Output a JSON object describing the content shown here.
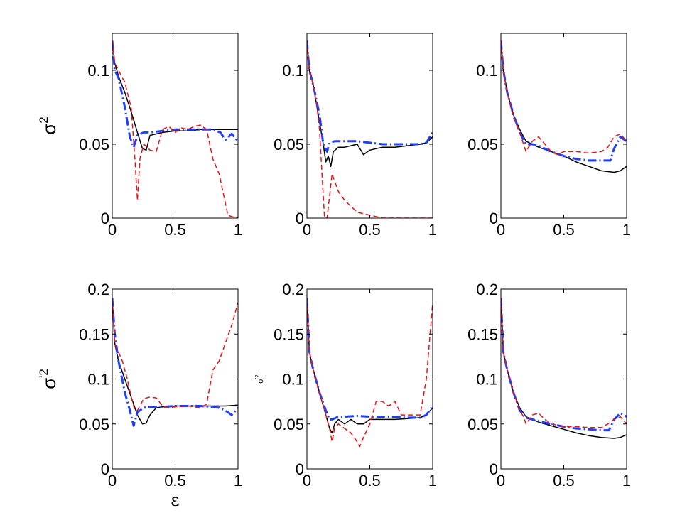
{
  "chart_data": [
    {
      "type": "line",
      "panel": "top-left",
      "xlim": [
        0,
        1
      ],
      "ylim": [
        0,
        0.125
      ],
      "xticks": [
        "0",
        "0.5",
        "1"
      ],
      "yticks": [
        "0",
        "0.05",
        "0.1"
      ],
      "ylabel": "σ",
      "ylabel_sup": "2",
      "xlabel": "",
      "series": [
        {
          "name": "solid",
          "x": [
            0,
            0.02,
            0.05,
            0.1,
            0.15,
            0.2,
            0.24,
            0.27,
            0.3,
            0.4,
            0.5,
            0.6,
            0.7,
            0.8,
            0.9,
            1.0
          ],
          "y": [
            0.12,
            0.105,
            0.096,
            0.085,
            0.072,
            0.058,
            0.047,
            0.046,
            0.056,
            0.058,
            0.059,
            0.059,
            0.06,
            0.06,
            0.06,
            0.06
          ]
        },
        {
          "name": "dashdot",
          "x": [
            0,
            0.02,
            0.05,
            0.1,
            0.14,
            0.17,
            0.2,
            0.25,
            0.3,
            0.4,
            0.5,
            0.6,
            0.7,
            0.8,
            0.86,
            0.9,
            0.95,
            1.0
          ],
          "y": [
            0.12,
            0.1,
            0.095,
            0.075,
            0.055,
            0.048,
            0.056,
            0.058,
            0.058,
            0.059,
            0.06,
            0.06,
            0.06,
            0.06,
            0.058,
            0.053,
            0.057,
            0.052
          ]
        },
        {
          "name": "dashed",
          "x": [
            0,
            0.02,
            0.05,
            0.08,
            0.1,
            0.12,
            0.15,
            0.18,
            0.2,
            0.22,
            0.25,
            0.28,
            0.3,
            0.35,
            0.4,
            0.45,
            0.5,
            0.55,
            0.6,
            0.65,
            0.7,
            0.75,
            0.8,
            0.85,
            0.9,
            0.92,
            0.95,
            1.0
          ],
          "y": [
            0.12,
            0.105,
            0.1,
            0.095,
            0.092,
            0.085,
            0.075,
            0.04,
            0.012,
            0.04,
            0.05,
            0.048,
            0.046,
            0.045,
            0.06,
            0.062,
            0.058,
            0.061,
            0.06,
            0.062,
            0.063,
            0.06,
            0.04,
            0.03,
            0.01,
            0.002,
            0.001,
            0.0
          ]
        }
      ]
    },
    {
      "type": "line",
      "panel": "top-middle",
      "xlim": [
        0,
        1
      ],
      "ylim": [
        0,
        0.125
      ],
      "xticks": [
        "0",
        "0.5",
        "1"
      ],
      "yticks": [
        "0",
        "0.05",
        "0.1"
      ],
      "ylabel": "",
      "xlabel": "",
      "series": [
        {
          "name": "solid",
          "x": [
            0,
            0.02,
            0.05,
            0.1,
            0.13,
            0.15,
            0.17,
            0.19,
            0.21,
            0.25,
            0.3,
            0.35,
            0.4,
            0.45,
            0.5,
            0.6,
            0.7,
            0.8,
            0.9,
            0.95,
            1.0
          ],
          "y": [
            0.12,
            0.1,
            0.09,
            0.065,
            0.05,
            0.038,
            0.042,
            0.035,
            0.045,
            0.048,
            0.048,
            0.049,
            0.05,
            0.043,
            0.046,
            0.048,
            0.048,
            0.049,
            0.05,
            0.051,
            0.055
          ]
        },
        {
          "name": "dashdot",
          "x": [
            0,
            0.02,
            0.05,
            0.1,
            0.13,
            0.16,
            0.18,
            0.22,
            0.3,
            0.4,
            0.5,
            0.6,
            0.7,
            0.8,
            0.9,
            0.95,
            1.0
          ],
          "y": [
            0.12,
            0.1,
            0.09,
            0.07,
            0.05,
            0.045,
            0.051,
            0.052,
            0.052,
            0.052,
            0.051,
            0.05,
            0.05,
            0.05,
            0.05,
            0.051,
            0.058
          ]
        },
        {
          "name": "dashed",
          "x": [
            0,
            0.02,
            0.05,
            0.08,
            0.1,
            0.12,
            0.14,
            0.16,
            0.18,
            0.2,
            0.22,
            0.25,
            0.3,
            0.35,
            0.4,
            0.45,
            0.5,
            0.6,
            0.7,
            0.8,
            0.9,
            1.0
          ],
          "y": [
            0.12,
            0.1,
            0.09,
            0.075,
            0.06,
            0.03,
            0.0,
            0.0,
            0.015,
            0.03,
            0.025,
            0.018,
            0.012,
            0.008,
            0.004,
            0.003,
            0.002,
            0.0,
            0.0,
            0.0,
            0.0,
            0.0
          ]
        }
      ]
    },
    {
      "type": "line",
      "panel": "top-right",
      "xlim": [
        0,
        1
      ],
      "ylim": [
        0,
        0.125
      ],
      "xticks": [
        "0",
        "0.5",
        "1"
      ],
      "yticks": [
        "0",
        "0.05",
        "0.1"
      ],
      "ylabel": "",
      "xlabel": "",
      "series": [
        {
          "name": "solid",
          "x": [
            0,
            0.02,
            0.05,
            0.1,
            0.15,
            0.2,
            0.25,
            0.3,
            0.4,
            0.5,
            0.6,
            0.7,
            0.8,
            0.9,
            0.95,
            1.0
          ],
          "y": [
            0.12,
            0.1,
            0.085,
            0.07,
            0.06,
            0.052,
            0.05,
            0.048,
            0.045,
            0.042,
            0.038,
            0.035,
            0.032,
            0.031,
            0.032,
            0.035
          ]
        },
        {
          "name": "dashdot",
          "x": [
            0,
            0.02,
            0.05,
            0.1,
            0.15,
            0.2,
            0.25,
            0.3,
            0.4,
            0.5,
            0.6,
            0.7,
            0.8,
            0.87,
            0.9,
            0.95,
            1.0
          ],
          "y": [
            0.12,
            0.1,
            0.085,
            0.07,
            0.058,
            0.05,
            0.05,
            0.049,
            0.045,
            0.042,
            0.04,
            0.039,
            0.039,
            0.039,
            0.047,
            0.055,
            0.052
          ]
        },
        {
          "name": "dashed",
          "x": [
            0,
            0.02,
            0.05,
            0.1,
            0.15,
            0.18,
            0.2,
            0.22,
            0.25,
            0.3,
            0.35,
            0.4,
            0.45,
            0.5,
            0.6,
            0.7,
            0.8,
            0.85,
            0.9,
            0.95,
            1.0
          ],
          "y": [
            0.12,
            0.1,
            0.085,
            0.068,
            0.058,
            0.05,
            0.045,
            0.048,
            0.052,
            0.055,
            0.05,
            0.045,
            0.043,
            0.045,
            0.045,
            0.044,
            0.045,
            0.048,
            0.055,
            0.057,
            0.052
          ]
        }
      ]
    },
    {
      "type": "line",
      "panel": "bottom-left",
      "xlim": [
        0,
        1
      ],
      "ylim": [
        0,
        0.2
      ],
      "xticks": [
        "0",
        "0.5",
        "1"
      ],
      "yticks": [
        "0",
        "0.05",
        "0.1",
        "0.15",
        "0.2"
      ],
      "ylabel": "σ",
      "ylabel_sup": "'2",
      "xlabel": "ε",
      "series": [
        {
          "name": "solid",
          "x": [
            0,
            0.02,
            0.05,
            0.1,
            0.15,
            0.2,
            0.24,
            0.27,
            0.3,
            0.35,
            0.4,
            0.5,
            0.6,
            0.7,
            0.8,
            0.9,
            1.0
          ],
          "y": [
            0.19,
            0.14,
            0.12,
            0.1,
            0.08,
            0.06,
            0.05,
            0.051,
            0.06,
            0.068,
            0.069,
            0.07,
            0.07,
            0.07,
            0.07,
            0.07,
            0.071
          ]
        },
        {
          "name": "dashdot",
          "x": [
            0,
            0.02,
            0.05,
            0.1,
            0.14,
            0.17,
            0.2,
            0.25,
            0.3,
            0.4,
            0.5,
            0.6,
            0.7,
            0.8,
            0.85,
            0.9,
            0.95,
            1.0
          ],
          "y": [
            0.19,
            0.15,
            0.12,
            0.085,
            0.065,
            0.048,
            0.063,
            0.068,
            0.069,
            0.069,
            0.07,
            0.07,
            0.07,
            0.069,
            0.068,
            0.065,
            0.06,
            0.068
          ]
        },
        {
          "name": "dashed",
          "x": [
            0,
            0.02,
            0.05,
            0.08,
            0.1,
            0.12,
            0.15,
            0.18,
            0.2,
            0.25,
            0.3,
            0.35,
            0.4,
            0.45,
            0.5,
            0.6,
            0.7,
            0.75,
            0.8,
            0.85,
            0.9,
            0.95,
            1.0
          ],
          "y": [
            0.19,
            0.14,
            0.13,
            0.12,
            0.11,
            0.1,
            0.08,
            0.065,
            0.065,
            0.078,
            0.08,
            0.079,
            0.07,
            0.068,
            0.069,
            0.07,
            0.068,
            0.072,
            0.11,
            0.12,
            0.14,
            0.16,
            0.185
          ]
        }
      ]
    },
    {
      "type": "line",
      "panel": "bottom-middle",
      "xlim": [
        0,
        1
      ],
      "ylim": [
        0,
        0.2
      ],
      "xticks": [
        "0",
        "0.5",
        "1"
      ],
      "yticks": [
        "0",
        "0.05",
        "0.1",
        "0.15",
        "0.2"
      ],
      "ylabel": "σ",
      "ylabel_sup": "'2",
      "xlabel": "",
      "series": [
        {
          "name": "solid",
          "x": [
            0,
            0.02,
            0.05,
            0.1,
            0.15,
            0.18,
            0.2,
            0.22,
            0.25,
            0.3,
            0.35,
            0.4,
            0.45,
            0.5,
            0.6,
            0.7,
            0.8,
            0.9,
            0.95,
            1.0
          ],
          "y": [
            0.19,
            0.13,
            0.11,
            0.085,
            0.06,
            0.045,
            0.04,
            0.05,
            0.055,
            0.05,
            0.055,
            0.05,
            0.05,
            0.055,
            0.055,
            0.055,
            0.056,
            0.057,
            0.06,
            0.068
          ]
        },
        {
          "name": "dashdot",
          "x": [
            0,
            0.02,
            0.05,
            0.1,
            0.15,
            0.18,
            0.2,
            0.25,
            0.3,
            0.4,
            0.5,
            0.6,
            0.7,
            0.8,
            0.9,
            0.95,
            1.0
          ],
          "y": [
            0.19,
            0.13,
            0.11,
            0.085,
            0.065,
            0.055,
            0.055,
            0.058,
            0.058,
            0.059,
            0.058,
            0.058,
            0.058,
            0.057,
            0.057,
            0.06,
            0.07
          ]
        },
        {
          "name": "dashed",
          "x": [
            0,
            0.02,
            0.05,
            0.1,
            0.15,
            0.18,
            0.2,
            0.22,
            0.25,
            0.3,
            0.35,
            0.4,
            0.42,
            0.45,
            0.5,
            0.55,
            0.6,
            0.65,
            0.7,
            0.75,
            0.8,
            0.9,
            0.95,
            1.0
          ],
          "y": [
            0.19,
            0.13,
            0.11,
            0.085,
            0.06,
            0.045,
            0.03,
            0.045,
            0.05,
            0.045,
            0.04,
            0.03,
            0.025,
            0.035,
            0.05,
            0.075,
            0.075,
            0.07,
            0.075,
            0.06,
            0.06,
            0.06,
            0.1,
            0.185
          ]
        }
      ]
    },
    {
      "type": "line",
      "panel": "bottom-right",
      "xlim": [
        0,
        1
      ],
      "ylim": [
        0,
        0.2
      ],
      "xticks": [
        "0",
        "0.5",
        "1"
      ],
      "yticks": [
        "0",
        "0.05",
        "0.1",
        "0.15",
        "0.2"
      ],
      "ylabel": "",
      "xlabel": "",
      "series": [
        {
          "name": "solid",
          "x": [
            0,
            0.02,
            0.05,
            0.1,
            0.15,
            0.2,
            0.25,
            0.3,
            0.4,
            0.5,
            0.6,
            0.7,
            0.8,
            0.9,
            0.95,
            1.0
          ],
          "y": [
            0.19,
            0.13,
            0.11,
            0.085,
            0.068,
            0.058,
            0.055,
            0.052,
            0.048,
            0.044,
            0.04,
            0.037,
            0.035,
            0.034,
            0.035,
            0.038
          ]
        },
        {
          "name": "dashdot",
          "x": [
            0,
            0.02,
            0.05,
            0.1,
            0.15,
            0.2,
            0.25,
            0.3,
            0.4,
            0.5,
            0.6,
            0.7,
            0.8,
            0.86,
            0.9,
            0.95,
            1.0
          ],
          "y": [
            0.19,
            0.13,
            0.11,
            0.085,
            0.065,
            0.057,
            0.055,
            0.053,
            0.05,
            0.047,
            0.045,
            0.044,
            0.043,
            0.043,
            0.055,
            0.062,
            0.058
          ]
        },
        {
          "name": "dashed",
          "x": [
            0,
            0.02,
            0.05,
            0.1,
            0.15,
            0.18,
            0.2,
            0.25,
            0.3,
            0.35,
            0.4,
            0.5,
            0.6,
            0.7,
            0.8,
            0.85,
            0.9,
            0.95,
            1.0
          ],
          "y": [
            0.19,
            0.13,
            0.11,
            0.085,
            0.065,
            0.058,
            0.05,
            0.06,
            0.062,
            0.055,
            0.05,
            0.047,
            0.047,
            0.046,
            0.046,
            0.05,
            0.055,
            0.058,
            0.05
          ]
        }
      ]
    }
  ],
  "style": {
    "solid_color": "#000000",
    "dashdot_color": "#1f3fff",
    "dashed_color": "#e8141a",
    "axis_color": "#000000",
    "background": "#ffffff"
  }
}
